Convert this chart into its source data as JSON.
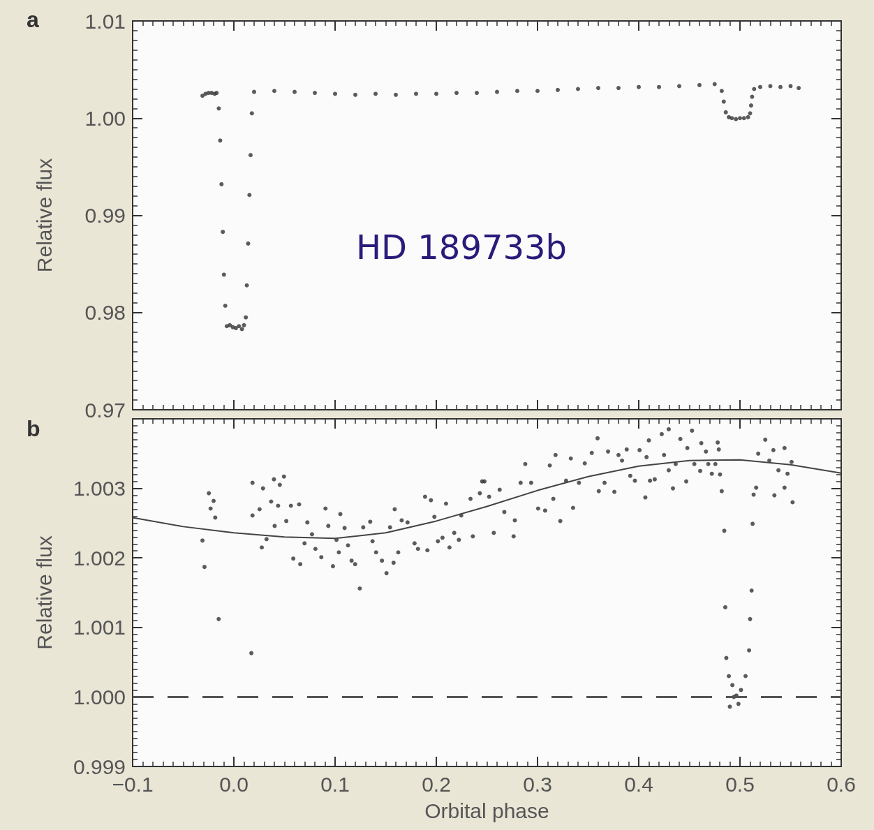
{
  "chart_data": [
    {
      "type": "scatter",
      "ylabel": "Relative flux",
      "annotations": [
        "a",
        "HD 189733b"
      ],
      "xlim": [
        -0.1,
        0.6
      ],
      "xticks": [
        -0.1,
        0,
        0.1,
        0.2,
        0.3,
        0.4,
        0.5,
        0.6
      ],
      "ylim": [
        0.97,
        1.01
      ],
      "yticks": [
        0.97,
        0.98,
        0.99,
        {
          "value": 1.0,
          "label": "1.00"
        },
        1.01
      ],
      "tick_labels": "y",
      "grid": false,
      "marker": "circle",
      "series": [
        {
          "color": "#333333",
          "x": [
            -0.031,
            -0.028,
            -0.025,
            -0.022,
            -0.019,
            -0.017,
            -0.0149,
            -0.0135,
            -0.0122,
            -0.0109,
            -0.0098,
            -0.0085,
            -0.007,
            -0.004,
            -0.001,
            0.002,
            0.005,
            0.008,
            0.01,
            0.0118,
            0.0128,
            0.0141,
            0.0154,
            0.0165,
            0.0178,
            0.02,
            0.04,
            0.06,
            0.08,
            0.1,
            0.12,
            0.14,
            0.16,
            0.18,
            0.2,
            0.22,
            0.24,
            0.26,
            0.28,
            0.3,
            0.32,
            0.34,
            0.36,
            0.38,
            0.4,
            0.42,
            0.44,
            0.46,
            0.475,
            0.482,
            0.484,
            0.486,
            0.489,
            0.492,
            0.496,
            0.5,
            0.504,
            0.508,
            0.51,
            0.511,
            0.512,
            0.514,
            0.52,
            0.53,
            0.54,
            0.55,
            0.558
          ],
          "values": [
            1.0023,
            1.0025,
            1.0026,
            1.0026,
            1.0025,
            1.0026,
            1.001,
            0.9977,
            0.9932,
            0.9883,
            0.9839,
            0.9807,
            0.9786,
            0.9787,
            0.9785,
            0.9784,
            0.9786,
            0.9783,
            0.9787,
            0.9795,
            0.9828,
            0.9871,
            0.9921,
            0.9962,
            1.0005,
            1.0027,
            1.0028,
            1.0027,
            1.0026,
            1.0025,
            1.0024,
            1.0025,
            1.0024,
            1.0025,
            1.0025,
            1.0026,
            1.0026,
            1.0027,
            1.0028,
            1.0028,
            1.0029,
            1.003,
            1.0031,
            1.0031,
            1.0032,
            1.0032,
            1.0033,
            1.0034,
            1.0035,
            1.0028,
            1.0017,
            1.0006,
            1.0001,
            1.0,
            0.9999,
            1.0,
            1.0,
            1.0001,
            1.0005,
            1.0013,
            1.0022,
            1.003,
            1.0032,
            1.0033,
            1.0032,
            1.0033,
            1.0031
          ]
        }
      ]
    },
    {
      "type": "scatter",
      "xlabel": "Orbital phase",
      "ylabel": "Relative flux",
      "annotations": [
        "b"
      ],
      "xlim": [
        -0.1,
        0.6
      ],
      "xticks": [
        {
          "value": -0.1,
          "label": "−0.1"
        },
        {
          "value": 0,
          "label": "0.0"
        },
        0.1,
        0.2,
        0.3,
        0.4,
        0.5,
        0.6
      ],
      "ylim": [
        0.999,
        1.004
      ],
      "yticks": [
        0.999,
        {
          "value": 1.0,
          "label": "1.000"
        },
        1.001,
        1.002,
        1.003
      ],
      "grid": false,
      "marker": "circle",
      "ref_lines": [
        {
          "axis": "y",
          "value": 1.0,
          "color": "#555555",
          "line_style": "dashed"
        }
      ],
      "series": [
        {
          "color": "#333333",
          "x": [
            -0.031,
            -0.029,
            -0.0247,
            -0.023,
            -0.02,
            -0.0184,
            -0.015,
            0.0173,
            0.0184,
            0.0184,
            0.0254,
            0.0276,
            0.0288,
            0.0323,
            0.0368,
            0.0396,
            0.0403,
            0.0437,
            0.0454,
            0.0495,
            0.0518,
            0.0564,
            0.0587,
            0.0645,
            0.0656,
            0.0698,
            0.0726,
            0.0772,
            0.0806,
            0.0864,
            0.0905,
            0.0933,
            0.0979,
            0.1014,
            0.1037,
            0.1052,
            0.1094,
            0.1128,
            0.1163,
            0.1198,
            0.1244,
            0.1278,
            0.1347,
            0.137,
            0.1405,
            0.1463,
            0.1508,
            0.1543,
            0.1578,
            0.1589,
            0.1624,
            0.1658,
            0.1716,
            0.1785,
            0.1819,
            0.1889,
            0.1912,
            0.1947,
            0.1981,
            0.2016,
            0.2061,
            0.2096,
            0.213,
            0.2177,
            0.2223,
            0.2246,
            0.2338,
            0.2361,
            0.243,
            0.2453,
            0.2476,
            0.2522,
            0.2568,
            0.2626,
            0.2672,
            0.2764,
            0.2776,
            0.2833,
            0.2879,
            0.2937,
            0.3006,
            0.3075,
            0.3121,
            0.3156,
            0.3178,
            0.3225,
            0.3282,
            0.3329,
            0.3351,
            0.3409,
            0.3467,
            0.3536,
            0.3593,
            0.3605,
            0.3662,
            0.3697,
            0.3759,
            0.38,
            0.3835,
            0.3881,
            0.3916,
            0.3962,
            0.4008,
            0.4065,
            0.4077,
            0.41,
            0.4111,
            0.4158,
            0.4227,
            0.425,
            0.4296,
            0.4296,
            0.4338,
            0.4365,
            0.4411,
            0.4469,
            0.448,
            0.4526,
            0.4549,
            0.4607,
            0.4618,
            0.4664,
            0.4687,
            0.4722,
            0.4757,
            0.478,
            0.4791,
            0.4803,
            0.482,
            0.4845,
            0.4855,
            0.4865,
            0.489,
            0.49,
            0.4925,
            0.494,
            0.4965,
            0.4985,
            0.501,
            0.5055,
            0.509,
            0.51,
            0.5115,
            0.5125,
            0.5135,
            0.516,
            0.518,
            0.525,
            0.529,
            0.533,
            0.534,
            0.538,
            0.544,
            0.544,
            0.547,
            0.551,
            0.552
          ],
          "values": [
            1.00225,
            1.00187,
            1.00293,
            1.00271,
            1.00282,
            1.00258,
            1.00112,
            1.00063,
            1.00308,
            1.00261,
            1.0027,
            1.00215,
            1.003,
            1.00227,
            1.00281,
            1.00313,
            1.00246,
            1.00275,
            1.00305,
            1.00317,
            1.00253,
            1.00275,
            1.00199,
            1.00277,
            1.00191,
            1.00221,
            1.00251,
            1.00234,
            1.00213,
            1.00201,
            1.00271,
            1.00246,
            1.00188,
            1.00226,
            1.00208,
            1.00263,
            1.00243,
            1.00218,
            1.00196,
            1.00191,
            1.00156,
            1.00244,
            1.00252,
            1.00224,
            1.00208,
            1.00196,
            1.00178,
            1.00244,
            1.00193,
            1.0027,
            1.00208,
            1.00254,
            1.00251,
            1.00221,
            1.00213,
            1.00288,
            1.00211,
            1.00283,
            1.00259,
            1.00224,
            1.00229,
            1.00278,
            1.00215,
            1.00236,
            1.00226,
            1.00261,
            1.00285,
            1.00231,
            1.00293,
            1.0031,
            1.0031,
            1.00288,
            1.00236,
            1.00298,
            1.00266,
            1.00231,
            1.00254,
            1.00308,
            1.00335,
            1.00308,
            1.00271,
            1.00268,
            1.00333,
            1.00285,
            1.00348,
            1.00253,
            1.00311,
            1.00343,
            1.00272,
            1.00308,
            1.00336,
            1.00351,
            1.00372,
            1.00296,
            1.00308,
            1.00353,
            1.00295,
            1.00348,
            1.0034,
            1.00356,
            1.00318,
            1.00311,
            1.00355,
            1.00287,
            1.00345,
            1.00369,
            1.00311,
            1.00313,
            1.00378,
            1.00348,
            1.00385,
            1.00326,
            1.003,
            1.00335,
            1.00371,
            1.0031,
            1.00358,
            1.00383,
            1.00335,
            1.00325,
            1.00365,
            1.00353,
            1.00335,
            1.00321,
            1.00335,
            1.00366,
            1.00356,
            1.0032,
            1.00296,
            1.00239,
            1.00129,
            1.00056,
            1.0003,
            0.99986,
            1.00017,
            1.0,
            1.00002,
            0.9999,
            1.0001,
            1.0003,
            1.00067,
            1.00112,
            1.00153,
            1.00249,
            1.00291,
            1.00301,
            1.0035,
            1.0037,
            1.0034,
            1.00355,
            1.0029,
            1.00326,
            1.00358,
            1.00301,
            1.00321,
            1.00338,
            1.0028
          ]
        },
        {
          "type": "line",
          "color": "#444444",
          "marker": "none",
          "line_style": "solid",
          "x": [
            -0.1,
            -0.05,
            0,
            0.05,
            0.1,
            0.15,
            0.2,
            0.25,
            0.3,
            0.35,
            0.4,
            0.45,
            0.5,
            0.55,
            0.6
          ],
          "values": [
            1.00258,
            1.00245,
            1.00236,
            1.0023,
            1.00228,
            1.00236,
            1.00253,
            1.00274,
            1.00297,
            1.00317,
            1.00332,
            1.0034,
            1.00341,
            1.00334,
            1.00322
          ]
        }
      ]
    }
  ]
}
